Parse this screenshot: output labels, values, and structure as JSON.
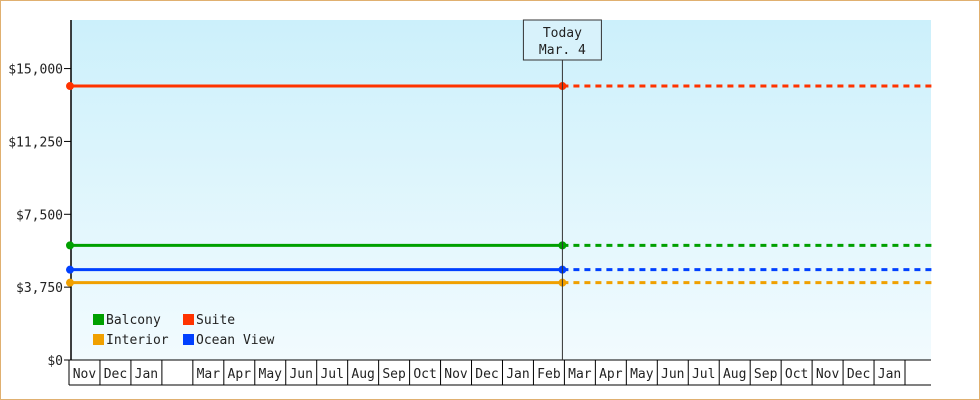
{
  "chart_data": {
    "type": "line",
    "x_labels": [
      "Nov",
      "Dec",
      "Jan",
      "",
      "Mar",
      "Apr",
      "May",
      "Jun",
      "Jul",
      "Aug",
      "Sep",
      "Oct",
      "Nov",
      "Dec",
      "Jan",
      "Feb",
      "Mar",
      "Apr",
      "May",
      "Jun",
      "Jul",
      "Aug",
      "Sep",
      "Oct",
      "Nov",
      "Dec",
      "Jan"
    ],
    "today_index": 16,
    "y_ticks": [
      "$0",
      "$3,750",
      "$7,500",
      "$11,250",
      "$15,000"
    ],
    "y_tick_values": [
      0,
      3750,
      7500,
      11250,
      15000
    ],
    "ylim": [
      0,
      17500
    ],
    "grid": false,
    "legend_position": "bottom-left",
    "annotation": {
      "line1": "Today",
      "line2": "Mar. 4"
    },
    "series": [
      {
        "name": "Suite",
        "color": "#ff3300",
        "value": 14100
      },
      {
        "name": "Balcony",
        "color": "#00a000",
        "value": 5900
      },
      {
        "name": "Ocean View",
        "color": "#0040ff",
        "value": 4650
      },
      {
        "name": "Interior",
        "color": "#f0a000",
        "value": 3980
      }
    ],
    "legend": [
      {
        "name": "Balcony",
        "color": "#00a000"
      },
      {
        "name": "Suite",
        "color": "#ff3300"
      },
      {
        "name": "Interior",
        "color": "#f0a000"
      },
      {
        "name": "Ocean View",
        "color": "#0040ff"
      }
    ]
  }
}
